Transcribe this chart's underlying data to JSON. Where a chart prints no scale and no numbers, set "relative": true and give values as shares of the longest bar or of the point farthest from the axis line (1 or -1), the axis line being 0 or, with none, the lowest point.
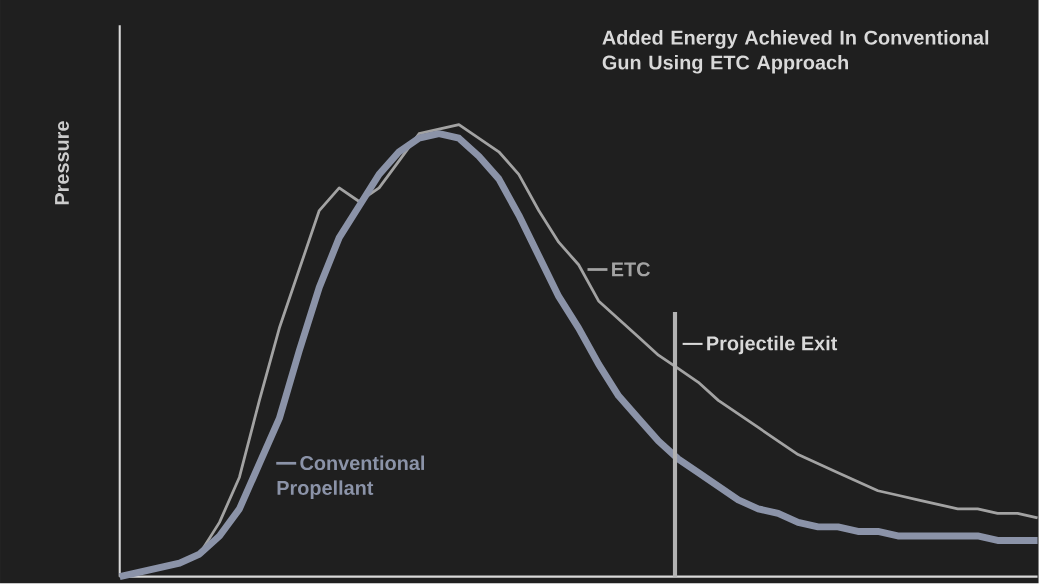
{
  "chart_data": {
    "type": "line",
    "relative": true,
    "ylabel": "Pressure",
    "categories": [
      null,
      null,
      null,
      null,
      null,
      null,
      null,
      null,
      null,
      null,
      null,
      null,
      null,
      null,
      null,
      null,
      null,
      null,
      null,
      null,
      null,
      null,
      null,
      null,
      null,
      null,
      null,
      null,
      null,
      null,
      null,
      null,
      null,
      null,
      null,
      null,
      null,
      null,
      null,
      null,
      null,
      null,
      null,
      null,
      null,
      null,
      null
    ],
    "series": [
      {
        "name": "ETC",
        "color": "#a3a3a3",
        "values": [
          0.0,
          0.01,
          0.02,
          0.03,
          0.05,
          0.12,
          0.22,
          0.39,
          0.55,
          0.68,
          0.81,
          0.86,
          0.83,
          0.86,
          0.92,
          0.98,
          0.99,
          1.0,
          0.97,
          0.94,
          0.89,
          0.81,
          0.74,
          0.69,
          0.61,
          0.57,
          0.53,
          0.49,
          0.46,
          0.43,
          0.39,
          0.36,
          0.33,
          0.3,
          0.27,
          0.25,
          0.23,
          0.21,
          0.19,
          0.18,
          0.17,
          0.16,
          0.15,
          0.15,
          0.14,
          0.14,
          0.13
        ]
      },
      {
        "name": "Conventional Propellant",
        "color": "#8b93a8",
        "values": [
          0.0,
          0.01,
          0.02,
          0.03,
          0.05,
          0.09,
          0.15,
          0.25,
          0.35,
          0.5,
          0.64,
          0.75,
          0.82,
          0.89,
          0.94,
          0.97,
          0.98,
          0.97,
          0.93,
          0.88,
          0.8,
          0.71,
          0.62,
          0.55,
          0.47,
          0.4,
          0.35,
          0.3,
          0.26,
          0.23,
          0.2,
          0.17,
          0.15,
          0.14,
          0.12,
          0.11,
          0.11,
          0.1,
          0.1,
          0.09,
          0.09,
          0.09,
          0.09,
          0.09,
          0.08,
          0.08,
          0.08
        ]
      }
    ],
    "legend": "center",
    "annotations": [
      "Added Energy Achieved In Conventional Gun Using ETC Approach",
      "Projectile Exit"
    ]
  }
}
